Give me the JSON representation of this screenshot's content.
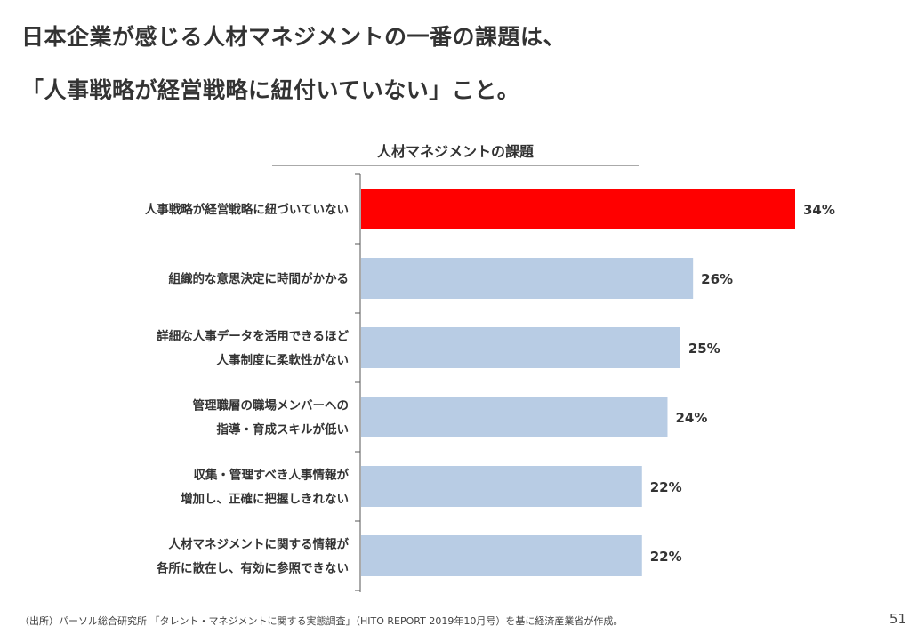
{
  "title_lines": [
    "日本企業が感じる人材マネジメントの一番の課題は、",
    "「人事戦略が経営戦略に紐付いていない」こと。"
  ],
  "chart_data": {
    "type": "bar",
    "orientation": "horizontal",
    "title": "人材マネジメントの課題",
    "categories": [
      [
        "人事戦略が経営戦略に紐づいていない"
      ],
      [
        "組織的な意思決定に時間がかかる"
      ],
      [
        "詳細な人事データを活用できるほど",
        "人事制度に柔軟性がない"
      ],
      [
        "管理職層の職場メンバーへの",
        "指導・育成スキルが低い"
      ],
      [
        "収集・管理すべき人事情報が",
        "増加し、正確に把握しきれない"
      ],
      [
        "人材マネジメントに関する情報が",
        "各所に散在し、有効に参照できない"
      ]
    ],
    "values": [
      34,
      26,
      25,
      24,
      22,
      22
    ],
    "value_labels": [
      "34%",
      "26%",
      "25%",
      "24%",
      "22%",
      "22%"
    ],
    "highlight_index": 0,
    "colors": {
      "highlight": "#ff0000",
      "default": "#b8cce4",
      "axis": "#555555"
    },
    "xlabel": "",
    "ylabel": "",
    "xlim": [
      0,
      34
    ]
  },
  "footer": {
    "source": "（出所）パーソル総合研究所 「タレント・マネジメントに関する実態調査」（HITO REPORT 2019年10月号）を基に経済産業省が作成。",
    "page_number": "51"
  }
}
